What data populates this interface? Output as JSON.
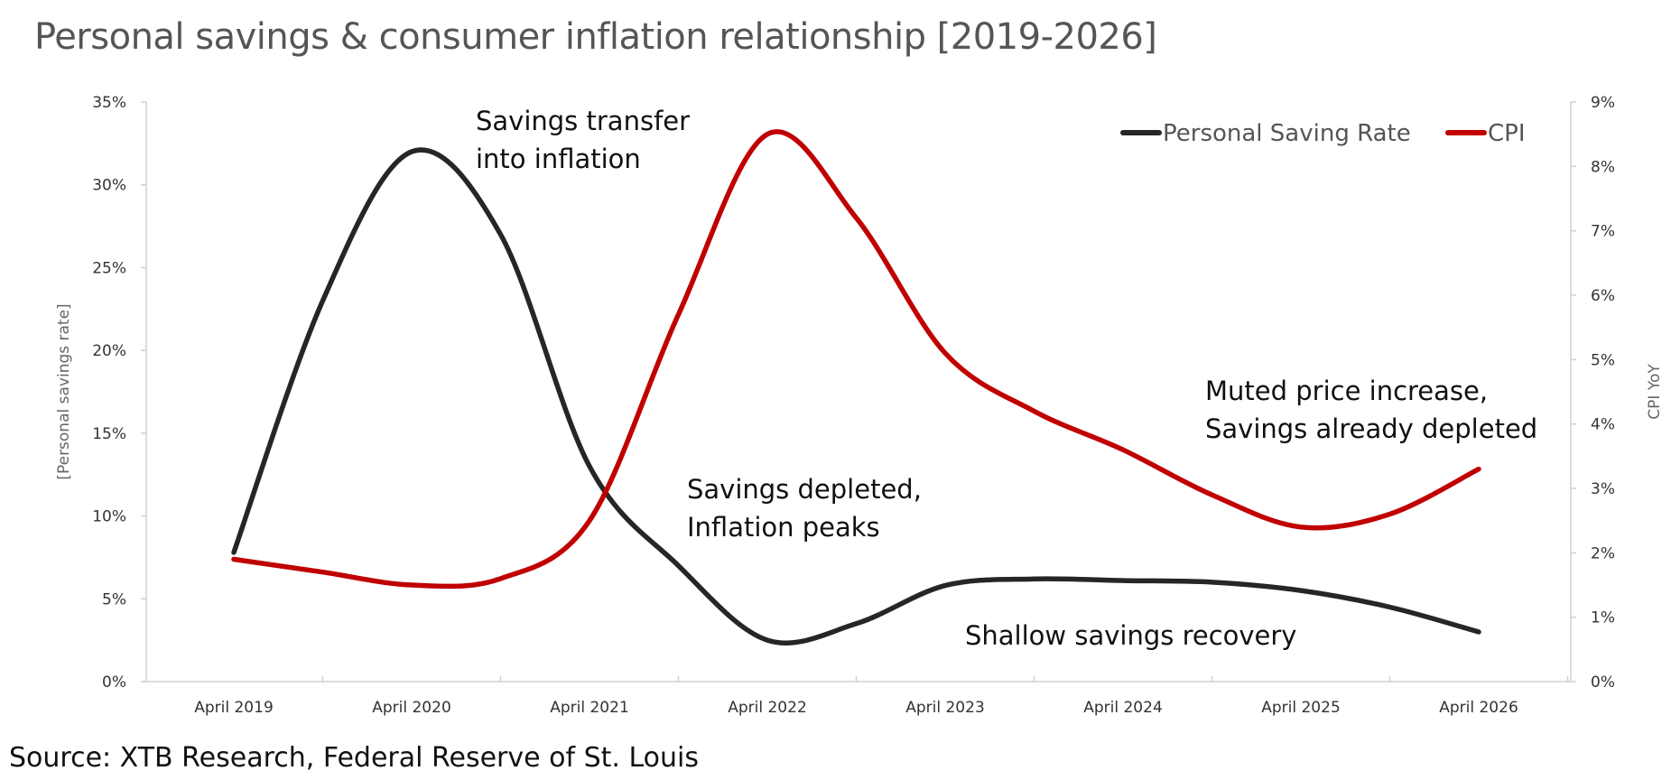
{
  "chart_data": {
    "type": "line",
    "title": "Personal savings & consumer inflation relationship [2019-2026]",
    "source": "Source: XTB Research, Federal Reserve of St. Louis",
    "x": [
      "April 2019",
      "April 2020",
      "April 2021",
      "April 2022",
      "April 2023",
      "April 2024",
      "April 2025",
      "April 2026"
    ],
    "y_left": {
      "label": "[Personal savings rate]",
      "lim": [
        0,
        35
      ],
      "ticks": [
        "0%",
        "5%",
        "10%",
        "15%",
        "20%",
        "25%",
        "30%",
        "35%"
      ]
    },
    "y_right": {
      "label": "CPI YoY",
      "lim": [
        0,
        9
      ],
      "ticks": [
        "0%",
        "1%",
        "2%",
        "3%",
        "4%",
        "5%",
        "6%",
        "7%",
        "8%",
        "9%"
      ]
    },
    "series": [
      {
        "name": "Personal Saving Rate",
        "axis": "left",
        "color": "#262626",
        "points": [
          [
            0,
            7.8
          ],
          [
            0.5,
            23
          ],
          [
            1,
            32
          ],
          [
            1.5,
            27
          ],
          [
            2,
            13
          ],
          [
            2.5,
            7
          ],
          [
            3,
            2.5
          ],
          [
            3.5,
            3.5
          ],
          [
            4,
            5.8
          ],
          [
            4.5,
            6.2
          ],
          [
            5,
            6.1
          ],
          [
            5.5,
            6.0
          ],
          [
            6,
            5.5
          ],
          [
            6.5,
            4.5
          ],
          [
            7,
            3.0
          ]
        ]
      },
      {
        "name": "CPI",
        "axis": "right",
        "color": "#C00000",
        "points": [
          [
            0,
            1.9
          ],
          [
            0.5,
            1.7
          ],
          [
            1,
            1.5
          ],
          [
            1.5,
            1.6
          ],
          [
            2,
            2.5
          ],
          [
            2.5,
            5.7
          ],
          [
            3,
            8.5
          ],
          [
            3.5,
            7.2
          ],
          [
            4,
            5.1
          ],
          [
            4.5,
            4.2
          ],
          [
            5,
            3.6
          ],
          [
            5.5,
            2.9
          ],
          [
            6,
            2.4
          ],
          [
            6.5,
            2.6
          ],
          [
            7,
            3.3
          ]
        ]
      }
    ],
    "legend": {
      "position": "top-right",
      "entries": [
        "Personal Saving Rate",
        "CPI"
      ]
    },
    "annotations": [
      {
        "lines": [
          "Savings transfer",
          "into inflation"
        ]
      },
      {
        "lines": [
          "Savings depleted,",
          "Inflation peaks"
        ]
      },
      {
        "lines": [
          "Shallow savings recovery"
        ]
      },
      {
        "lines": [
          "Muted price increase,",
          "Savings already depleted"
        ]
      }
    ]
  }
}
